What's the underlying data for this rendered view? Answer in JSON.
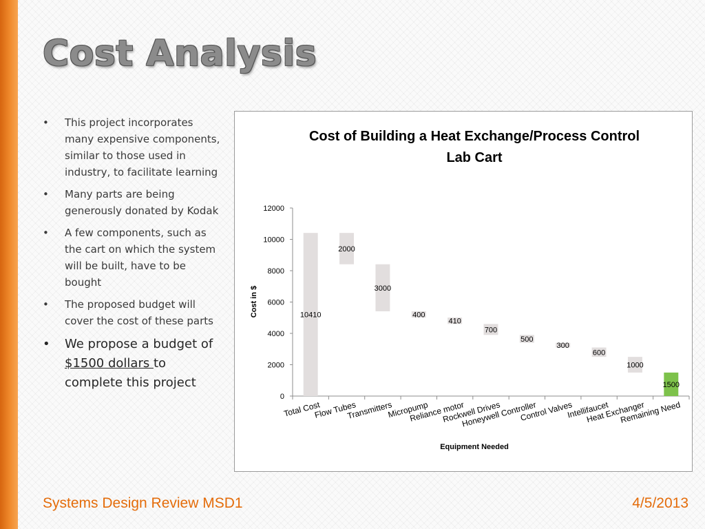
{
  "slide": {
    "title": "Cost Analysis",
    "bullets": [
      "This project incorporates many expensive components, similar to those used in industry, to facilitate learning",
      "Many parts are being generously donated by Kodak",
      "A few components, such as the cart on which the system will be built, have to be bought",
      "The proposed budget will cover the cost of these parts"
    ],
    "last_bullet": {
      "before": "We propose a budget of ",
      "amount": "$1500 dollars ",
      "after": "to complete this project"
    },
    "bullet_symbol": "•",
    "footer_left": "Systems Design Review MSD1",
    "footer_right": "4/5/2013"
  },
  "colors": {
    "accent_orange": "#e46c0a",
    "bar_gray": "#e2dede",
    "bar_green": "#7dc24b"
  },
  "chart_data": {
    "type": "bar",
    "subtype": "waterfall",
    "title": "Cost of Building a Heat Exchange/Process Control Lab Cart",
    "title_lines": [
      "Cost of Building a Heat Exchange/Process Control",
      "Lab Cart"
    ],
    "xlabel": "Equipment Needed",
    "ylabel": "Cost in $",
    "ylim": [
      0,
      12000
    ],
    "yticks": [
      0,
      2000,
      4000,
      6000,
      8000,
      10000,
      12000
    ],
    "grid": false,
    "legend": "none",
    "categories": [
      "Total Cost",
      "Flow Tubes",
      "Transmitters",
      "Micropump",
      "Reliance motor",
      "Rockwell Drives",
      "Honeywell Controller",
      "Control Valves",
      "Intellifaucet",
      "Heat Exchanger",
      "Remaining Need"
    ],
    "values": [
      10410,
      2000,
      3000,
      400,
      410,
      700,
      500,
      300,
      600,
      1000,
      1500
    ],
    "bases": [
      0,
      8410,
      5410,
      5010,
      4600,
      3900,
      3400,
      3100,
      2500,
      1500,
      0
    ],
    "bar_colors": [
      "#e2dede",
      "#e2dede",
      "#e2dede",
      "#e2dede",
      "#e2dede",
      "#e2dede",
      "#e2dede",
      "#e2dede",
      "#e2dede",
      "#e2dede",
      "#7dc24b"
    ]
  }
}
